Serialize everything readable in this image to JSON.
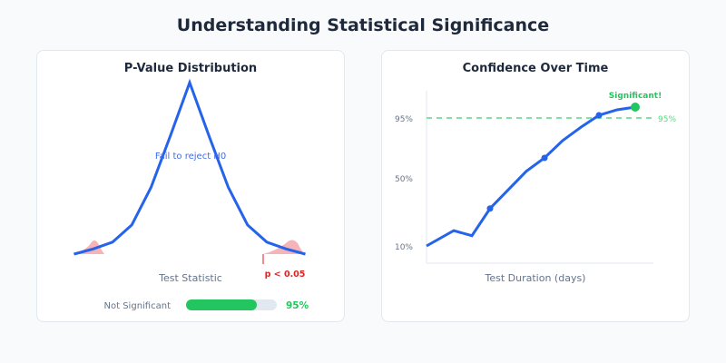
{
  "title": "Understanding Statistical Significance",
  "colors": {
    "line": "#2563eb",
    "significant": "#22c55e",
    "reject": "#dc2626",
    "tail": "#f4b4b8",
    "track": "#e2e8f0"
  },
  "progress": {
    "label": "Not Significant",
    "value_label": "95%",
    "fill_percent": 78
  },
  "chart_data": [
    {
      "type": "line",
      "title": "P-Value Distribution",
      "xlabel": "Test Statistic",
      "x": [
        -3,
        -2.5,
        -2,
        -1.5,
        -1,
        -0.5,
        0,
        0.5,
        1,
        1.5,
        2,
        2.5,
        3
      ],
      "values": [
        0,
        0.03,
        0.07,
        0.17,
        0.39,
        0.69,
        1,
        0.69,
        0.39,
        0.17,
        0.07,
        0.03,
        0
      ],
      "annotations": {
        "center": "Fail to reject H0",
        "tail": "p < 0.05"
      }
    },
    {
      "type": "line",
      "title": "Confidence Over Time",
      "xlabel": "Test Duration (days)",
      "yticks": [
        "95%",
        "50%",
        "10%"
      ],
      "x": [
        0,
        1.5,
        2.5,
        3.5,
        5.5,
        6.5,
        7.5,
        8.5,
        9.5,
        10.5,
        11.5
      ],
      "values": [
        10,
        19,
        16,
        32,
        55,
        65,
        78,
        88,
        96,
        98,
        99
      ],
      "markers": [
        3,
        5,
        8
      ],
      "threshold": {
        "value": 95,
        "label": "95%"
      },
      "final_label": "Significant!"
    }
  ]
}
